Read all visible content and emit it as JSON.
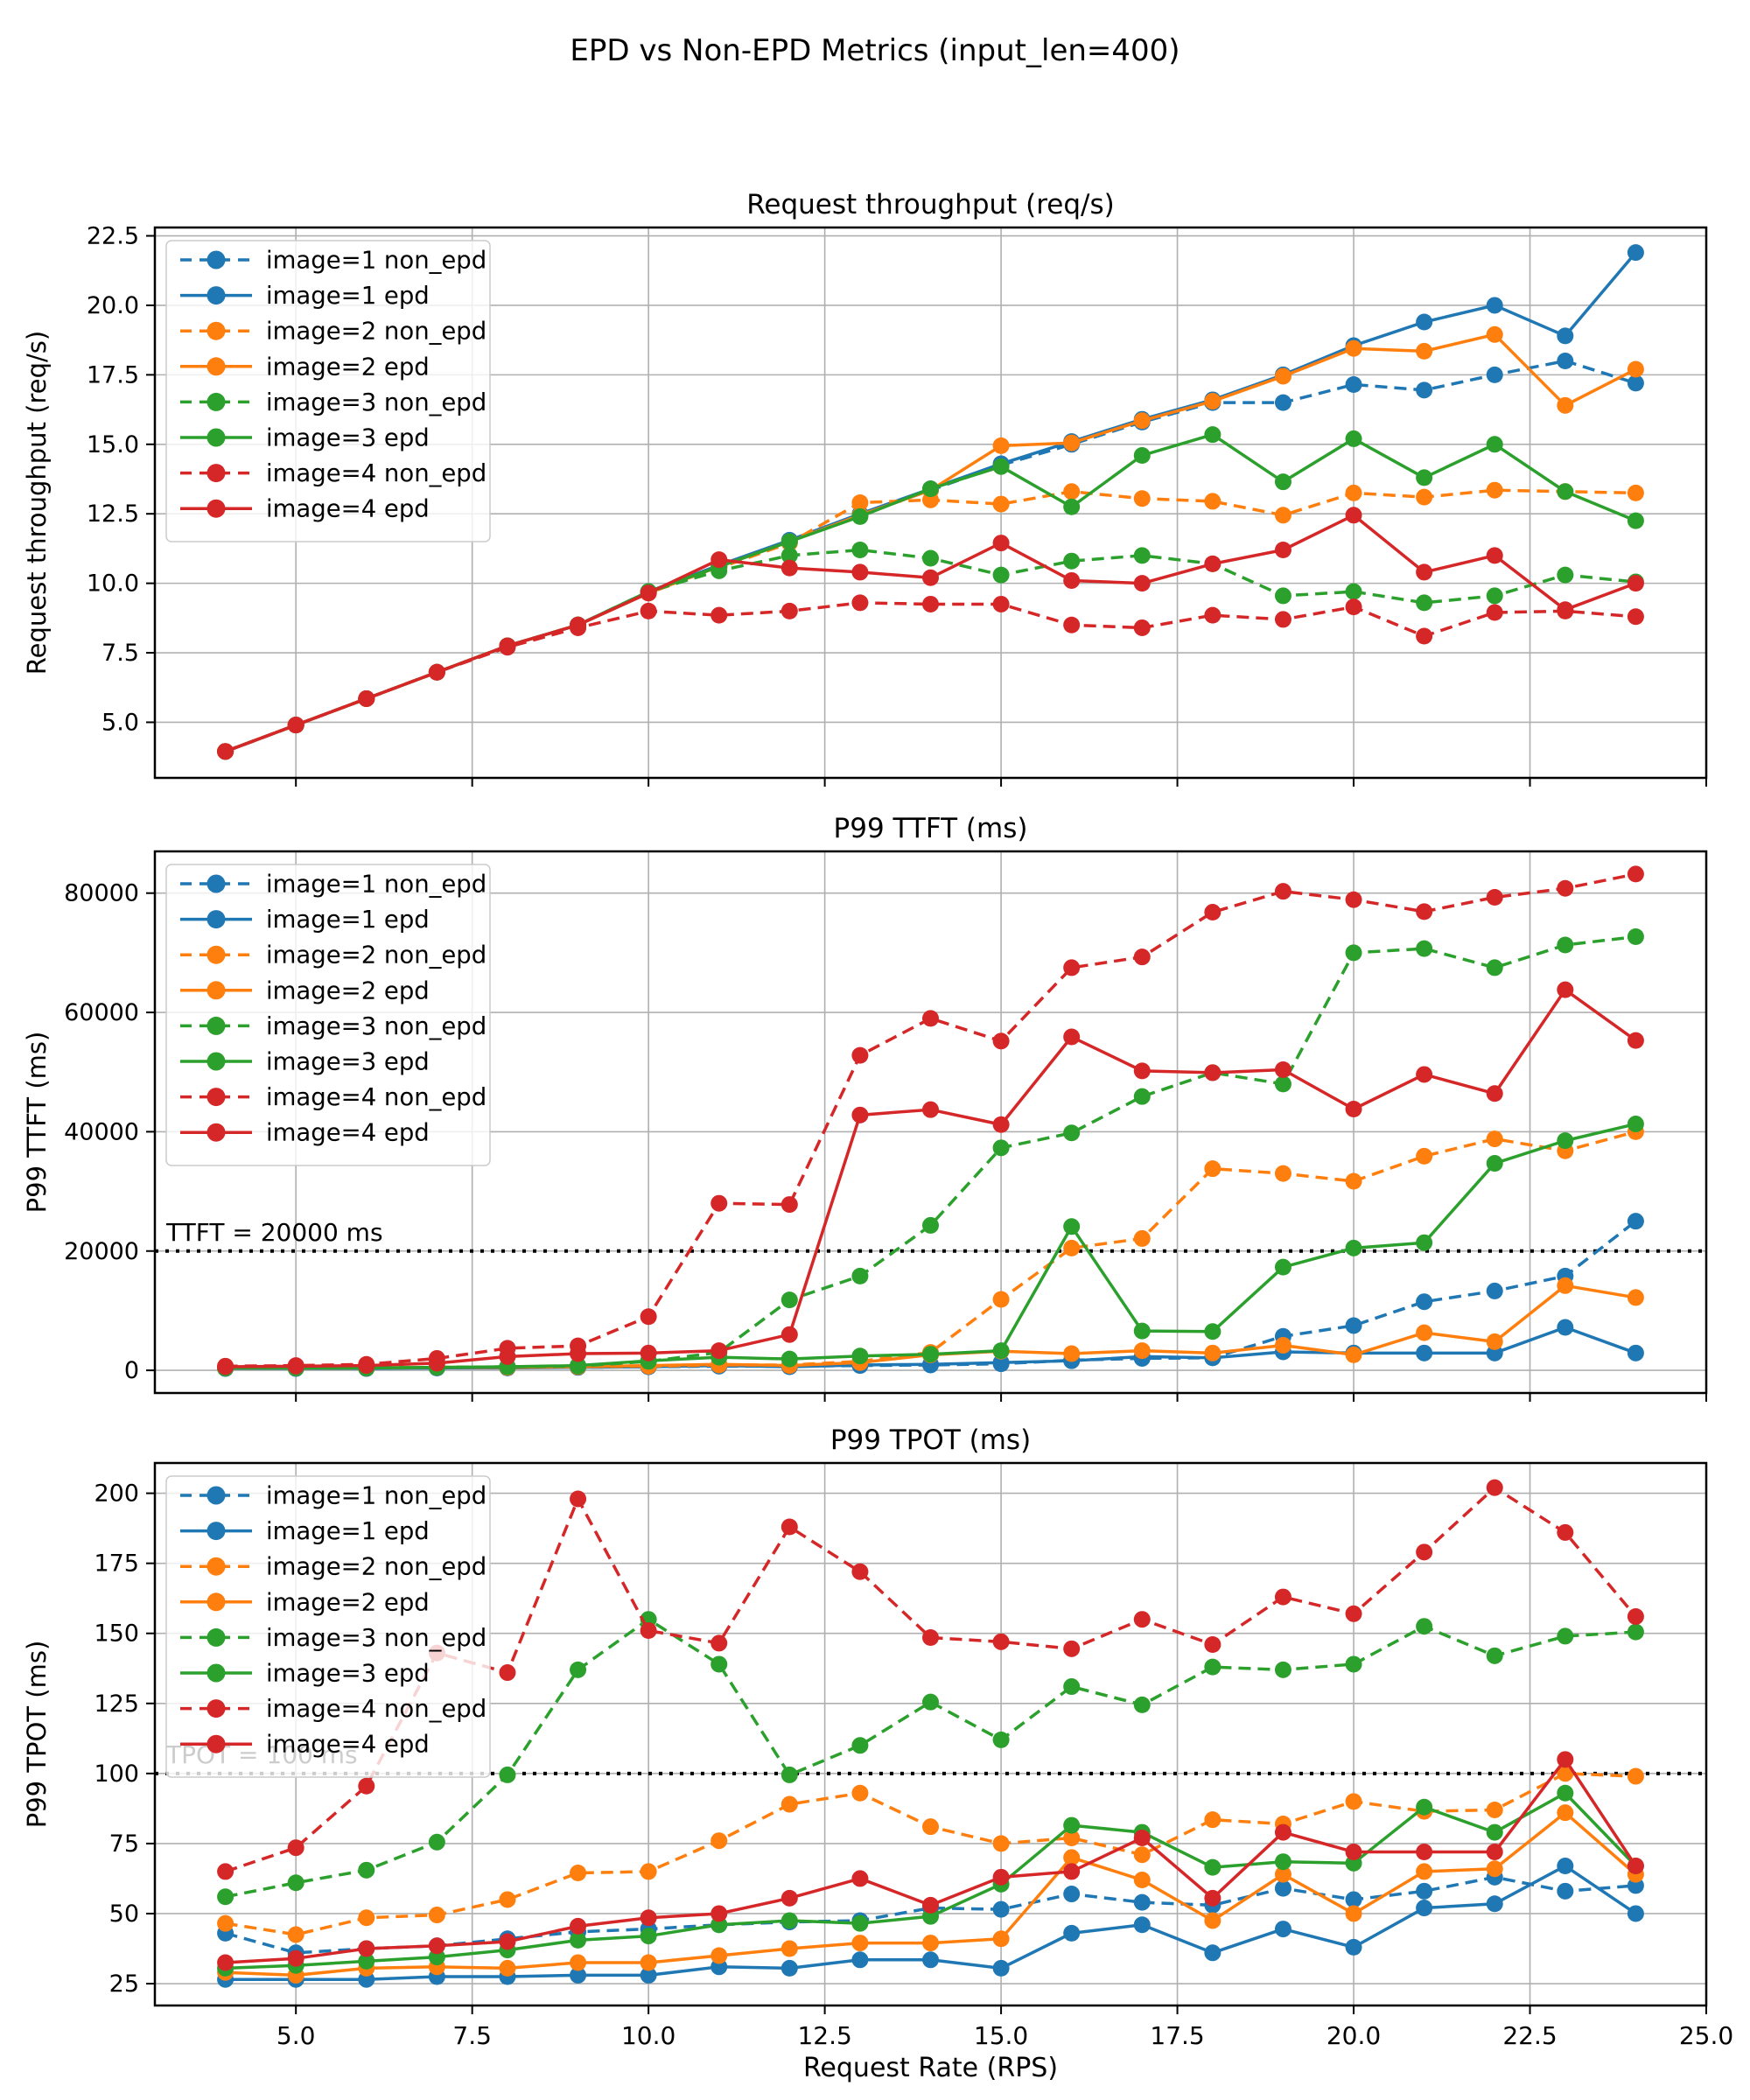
{
  "figure": {
    "suptitle": "EPD vs Non-EPD Metrics (input_len=400)",
    "xlabel": "Request Rate (RPS)",
    "background": "#ffffff",
    "grid_color": "#b0b0b0",
    "spine_color": "#000000",
    "threshold_color": "#000000"
  },
  "palette": {
    "blue": "#1f77b4",
    "orange": "#ff7f0e",
    "green": "#2ca02c",
    "red": "#d62728"
  },
  "legend": {
    "entries": [
      {
        "label": "image=1 non_epd",
        "color": "#1f77b4",
        "dashed": true
      },
      {
        "label": "image=1 epd",
        "color": "#1f77b4",
        "dashed": false
      },
      {
        "label": "image=2 non_epd",
        "color": "#ff7f0e",
        "dashed": true
      },
      {
        "label": "image=2 epd",
        "color": "#ff7f0e",
        "dashed": false
      },
      {
        "label": "image=3 non_epd",
        "color": "#2ca02c",
        "dashed": true
      },
      {
        "label": "image=3 epd",
        "color": "#2ca02c",
        "dashed": false
      },
      {
        "label": "image=4 non_epd",
        "color": "#d62728",
        "dashed": true
      },
      {
        "label": "image=4 epd",
        "color": "#d62728",
        "dashed": false
      }
    ]
  },
  "x_axis": {
    "label": "Request Rate (RPS)",
    "ticks": [
      5.0,
      7.5,
      10.0,
      12.5,
      15.0,
      17.5,
      20.0,
      22.5,
      25.0
    ],
    "tick_labels": [
      "5.0",
      "7.5",
      "10.0",
      "12.5",
      "15.0",
      "17.5",
      "20.0",
      "22.5",
      "25.0"
    ],
    "xlim": [
      3,
      25
    ]
  },
  "chart_data": [
    {
      "type": "line",
      "title": "Request throughput (req/s)",
      "ylabel": "Request throughput (req/s)",
      "xlabel": "Request Rate (RPS)",
      "x": [
        4,
        5,
        6,
        7,
        8,
        9,
        10,
        11,
        12,
        13,
        14,
        15,
        16,
        17,
        18,
        19,
        20,
        21,
        22,
        23,
        24
      ],
      "xlim": [
        3,
        25
      ],
      "ylim": [
        3.0,
        22.8
      ],
      "yticks": [
        5.0,
        7.5,
        10.0,
        12.5,
        15.0,
        17.5,
        20.0,
        22.5
      ],
      "ytick_labels": [
        "5.0",
        "7.5",
        "10.0",
        "12.5",
        "15.0",
        "17.5",
        "20.0",
        "22.5"
      ],
      "grid": true,
      "legend_position": "upper-left",
      "series": [
        {
          "name": "image=1 non_epd",
          "color": "#1f77b4",
          "dashed": true,
          "values": [
            3.95,
            4.9,
            5.85,
            6.8,
            7.75,
            8.5,
            9.7,
            10.6,
            11.5,
            12.45,
            13.35,
            14.25,
            15.0,
            15.8,
            16.5,
            16.5,
            17.15,
            16.95,
            17.5,
            18.0,
            17.2
          ]
        },
        {
          "name": "image=1 epd",
          "color": "#1f77b4",
          "dashed": false,
          "values": [
            3.95,
            4.9,
            5.85,
            6.8,
            7.75,
            8.5,
            9.7,
            10.65,
            11.55,
            12.5,
            13.4,
            14.3,
            15.1,
            15.9,
            16.6,
            17.5,
            18.55,
            19.4,
            20.0,
            18.9,
            21.9
          ]
        },
        {
          "name": "image=2 non_epd",
          "color": "#ff7f0e",
          "dashed": true,
          "values": [
            3.95,
            4.9,
            5.85,
            6.8,
            7.75,
            8.5,
            9.65,
            10.55,
            11.45,
            12.9,
            13.0,
            12.85,
            13.3,
            13.05,
            12.95,
            12.45,
            13.25,
            13.1,
            13.35,
            13.3,
            13.25
          ]
        },
        {
          "name": "image=2 epd",
          "color": "#ff7f0e",
          "dashed": false,
          "values": [
            3.95,
            4.9,
            5.85,
            6.8,
            7.75,
            8.5,
            9.65,
            10.6,
            11.5,
            12.45,
            13.35,
            14.95,
            15.05,
            15.85,
            16.55,
            17.45,
            18.45,
            18.35,
            18.95,
            16.4,
            17.7
          ]
        },
        {
          "name": "image=3 non_epd",
          "color": "#2ca02c",
          "dashed": true,
          "values": [
            3.95,
            4.9,
            5.85,
            6.8,
            7.75,
            8.5,
            9.7,
            10.45,
            11.0,
            11.2,
            10.9,
            10.3,
            10.8,
            11.0,
            10.7,
            9.55,
            9.7,
            9.3,
            9.55,
            10.3,
            10.05
          ]
        },
        {
          "name": "image=3 epd",
          "color": "#2ca02c",
          "dashed": false,
          "values": [
            3.95,
            4.9,
            5.85,
            6.8,
            7.75,
            8.5,
            9.7,
            10.6,
            11.5,
            12.4,
            13.4,
            14.2,
            12.75,
            14.6,
            15.35,
            13.65,
            15.2,
            13.8,
            15.0,
            13.3,
            12.25
          ]
        },
        {
          "name": "image=4 non_epd",
          "color": "#d62728",
          "dashed": true,
          "values": [
            3.95,
            4.9,
            5.85,
            6.8,
            7.7,
            8.4,
            9.0,
            8.85,
            9.0,
            9.3,
            9.25,
            9.25,
            8.5,
            8.4,
            8.85,
            8.7,
            9.15,
            8.1,
            8.95,
            9.0,
            8.8
          ]
        },
        {
          "name": "image=4 epd",
          "color": "#d62728",
          "dashed": false,
          "values": [
            3.95,
            4.9,
            5.85,
            6.8,
            7.75,
            8.5,
            9.65,
            10.85,
            10.55,
            10.4,
            10.2,
            11.45,
            10.1,
            10.0,
            10.7,
            11.2,
            12.45,
            10.4,
            11.0,
            9.05,
            10.0
          ]
        }
      ]
    },
    {
      "type": "line",
      "title": "P99 TTFT (ms)",
      "ylabel": "P99 TTFT (ms)",
      "xlabel": "Request Rate (RPS)",
      "x": [
        4,
        5,
        6,
        7,
        8,
        9,
        10,
        11,
        12,
        13,
        14,
        15,
        16,
        17,
        18,
        19,
        20,
        21,
        22,
        23,
        24
      ],
      "xlim": [
        3,
        25
      ],
      "ylim": [
        -3800,
        87000
      ],
      "yticks": [
        0,
        20000,
        40000,
        60000,
        80000
      ],
      "ytick_labels": [
        "0",
        "20000",
        "40000",
        "60000",
        "80000"
      ],
      "grid": true,
      "legend_position": "upper-left",
      "threshold": {
        "y": 20000,
        "label": "TTFT = 20000 ms"
      },
      "series": [
        {
          "name": "image=1 non_epd",
          "color": "#1f77b4",
          "dashed": true,
          "values": [
            400,
            400,
            400,
            400,
            500,
            500,
            600,
            700,
            700,
            800,
            900,
            1100,
            1700,
            2000,
            2100,
            5700,
            7500,
            11500,
            13300,
            15800,
            25000
          ]
        },
        {
          "name": "image=1 epd",
          "color": "#1f77b4",
          "dashed": false,
          "values": [
            300,
            300,
            300,
            400,
            400,
            500,
            600,
            800,
            600,
            900,
            1000,
            1300,
            1600,
            2300,
            2100,
            3100,
            2900,
            2900,
            2900,
            7200,
            2900
          ]
        },
        {
          "name": "image=2 non_epd",
          "color": "#ff7f0e",
          "dashed": true,
          "values": [
            400,
            400,
            400,
            500,
            500,
            600,
            700,
            900,
            900,
            1500,
            3000,
            11900,
            20500,
            22100,
            33800,
            33000,
            31700,
            35900,
            38800,
            36800,
            40000
          ]
        },
        {
          "name": "image=2 epd",
          "color": "#ff7f0e",
          "dashed": false,
          "values": [
            400,
            400,
            400,
            500,
            500,
            600,
            800,
            1000,
            800,
            1300,
            2600,
            3200,
            2800,
            3300,
            2900,
            4200,
            2600,
            6300,
            4800,
            14200,
            12200
          ]
        },
        {
          "name": "image=3 non_epd",
          "color": "#2ca02c",
          "dashed": true,
          "values": [
            400,
            400,
            400,
            500,
            600,
            700,
            1500,
            3000,
            11800,
            15800,
            24300,
            37300,
            39800,
            45900,
            49900,
            48000,
            70000,
            70700,
            67500,
            71300,
            72700
          ]
        },
        {
          "name": "image=3 epd",
          "color": "#2ca02c",
          "dashed": false,
          "values": [
            400,
            400,
            400,
            500,
            600,
            800,
            1600,
            2200,
            1900,
            2400,
            2700,
            3300,
            24100,
            6600,
            6500,
            17300,
            20500,
            21400,
            34700,
            38500,
            41300
          ]
        },
        {
          "name": "image=4 non_epd",
          "color": "#d62728",
          "dashed": true,
          "values": [
            700,
            800,
            1000,
            2000,
            3700,
            4100,
            9000,
            28000,
            27800,
            52800,
            59000,
            55200,
            67500,
            69300,
            76800,
            80300,
            78900,
            76900,
            79300,
            80800,
            83200
          ]
        },
        {
          "name": "image=4 epd",
          "color": "#d62728",
          "dashed": false,
          "values": [
            600,
            700,
            800,
            1200,
            2300,
            2800,
            2900,
            3300,
            6000,
            42800,
            43700,
            41200,
            55900,
            50200,
            49900,
            50400,
            43800,
            49600,
            46400,
            63800,
            55300
          ]
        }
      ]
    },
    {
      "type": "line",
      "title": "P99 TPOT (ms)",
      "ylabel": "P99 TPOT (ms)",
      "xlabel": "Request Rate (RPS)",
      "x": [
        4,
        5,
        6,
        7,
        8,
        9,
        10,
        11,
        12,
        13,
        14,
        15,
        16,
        17,
        18,
        19,
        20,
        21,
        22,
        23,
        24
      ],
      "xlim": [
        3,
        25
      ],
      "ylim": [
        17.2,
        210.8
      ],
      "yticks": [
        25,
        50,
        75,
        100,
        125,
        150,
        175,
        200
      ],
      "ytick_labels": [
        "25",
        "50",
        "75",
        "100",
        "125",
        "150",
        "175",
        "200"
      ],
      "grid": true,
      "legend_position": "upper-left",
      "threshold": {
        "y": 100,
        "label": "TPOT = 100 ms"
      },
      "series": [
        {
          "name": "image=1 non_epd",
          "color": "#1f77b4",
          "dashed": true,
          "values": [
            43,
            36,
            37.5,
            38.5,
            41,
            43.5,
            44.5,
            46,
            47,
            47.5,
            52,
            51.5,
            57,
            54,
            53,
            59,
            55,
            58,
            63,
            58,
            60
          ]
        },
        {
          "name": "image=1 epd",
          "color": "#1f77b4",
          "dashed": false,
          "values": [
            26.5,
            26.5,
            26.5,
            27.5,
            27.5,
            28,
            28,
            31,
            30.5,
            33.5,
            33.5,
            30.5,
            43,
            46,
            36,
            44.5,
            38,
            52,
            53.5,
            67,
            50
          ]
        },
        {
          "name": "image=2 non_epd",
          "color": "#ff7f0e",
          "dashed": true,
          "values": [
            46.5,
            42.5,
            48.5,
            49.5,
            55,
            64.5,
            65,
            76,
            89,
            93,
            81,
            75,
            77,
            71,
            83.5,
            82,
            90,
            86.5,
            87,
            100,
            99
          ]
        },
        {
          "name": "image=2 epd",
          "color": "#ff7f0e",
          "dashed": false,
          "values": [
            29,
            28,
            30.5,
            31,
            30.5,
            32.5,
            32.5,
            35,
            37.5,
            39.5,
            39.5,
            41,
            70,
            62,
            47.5,
            64,
            50,
            65,
            66,
            86,
            64
          ]
        },
        {
          "name": "image=3 non_epd",
          "color": "#2ca02c",
          "dashed": true,
          "values": [
            56,
            61,
            65.5,
            75.5,
            99.5,
            137,
            155,
            139,
            99.5,
            110,
            125.5,
            112,
            131,
            124.5,
            138,
            137,
            139,
            152.5,
            142,
            149,
            150.5
          ]
        },
        {
          "name": "image=3 epd",
          "color": "#2ca02c",
          "dashed": false,
          "values": [
            30.5,
            31.5,
            33,
            34.5,
            37,
            40.5,
            42,
            46,
            47.5,
            46.5,
            49,
            60.5,
            81.5,
            79,
            66.5,
            68.5,
            68,
            88,
            79,
            93,
            67
          ]
        },
        {
          "name": "image=4 non_epd",
          "color": "#d62728",
          "dashed": true,
          "values": [
            65,
            73.5,
            95.5,
            143,
            136,
            198,
            151,
            146.5,
            188,
            172,
            148.5,
            147,
            144.5,
            155,
            146,
            163,
            157,
            179,
            202,
            186,
            156
          ]
        },
        {
          "name": "image=4 epd",
          "color": "#d62728",
          "dashed": false,
          "values": [
            32.5,
            34,
            37.5,
            38.5,
            40,
            45.5,
            48.5,
            50,
            55.5,
            62.5,
            53,
            63,
            65,
            77,
            55.5,
            79,
            72,
            72,
            72,
            105,
            67
          ]
        }
      ]
    }
  ]
}
